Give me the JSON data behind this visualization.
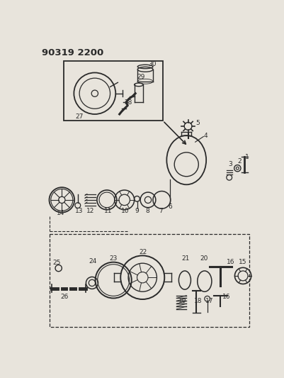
{
  "title": "90319 2200",
  "bg_color": "#e8e4dc",
  "fig_width": 4.01,
  "fig_height": 5.33,
  "dpi": 100,
  "line_color": "#2a2a2a",
  "label_fontsize": 6.5,
  "title_fontsize": 9.5
}
